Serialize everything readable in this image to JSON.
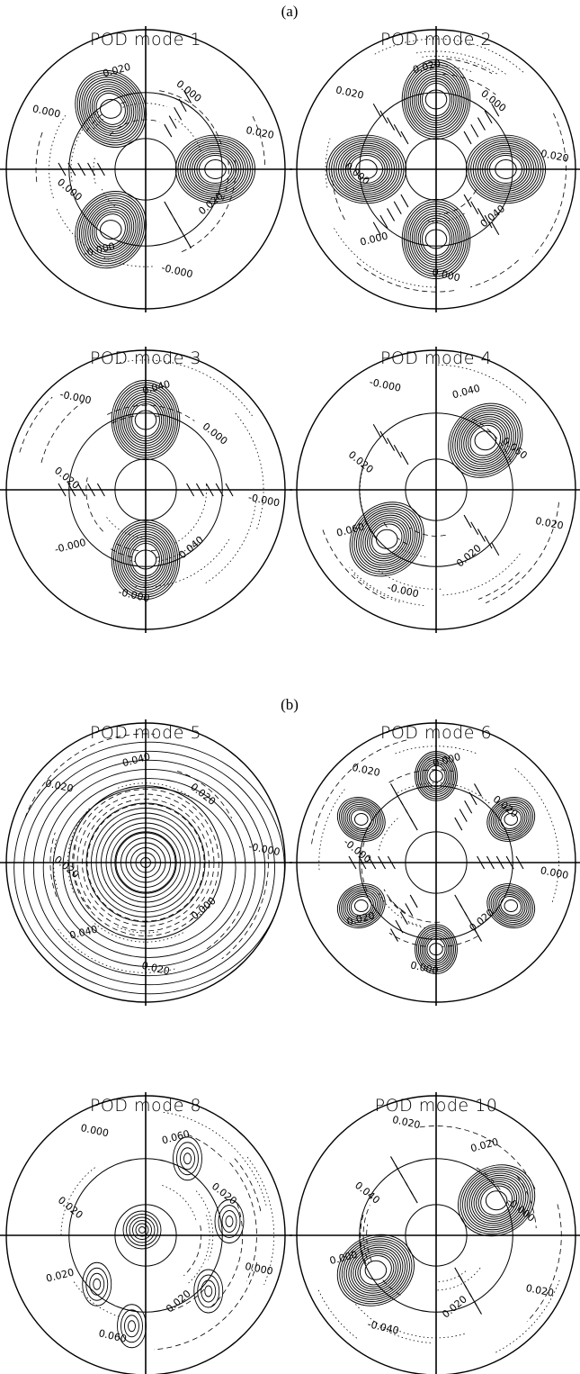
{
  "sections": [
    {
      "label": "(a)",
      "panels": [
        {
          "title": "POD mode  1",
          "pattern": {
            "m": 3,
            "phase": 90,
            "type": "lobes"
          },
          "labels": [
            "0.020",
            "-0.000",
            "-0.000",
            "0.000",
            "0.000",
            "0.020",
            "0.000",
            "0.020"
          ]
        },
        {
          "title": "POD mode  2",
          "pattern": {
            "m": 4,
            "phase": 0,
            "type": "lobes"
          },
          "labels": [
            "0.040",
            "0.000",
            "0.000",
            "0.000",
            "0.020",
            "0.020",
            "0.000",
            "0.020"
          ]
        },
        {
          "title": "POD mode  3",
          "pattern": {
            "m": 2,
            "phase": 0,
            "type": "lobes"
          },
          "labels": [
            "0.040",
            "-0.000",
            "-0.000",
            "0.020",
            "-0.000",
            "0.040",
            "0.000",
            "-0.000"
          ]
        },
        {
          "title": "POD mode  4",
          "pattern": {
            "m": 2,
            "phase": 45,
            "type": "lobes"
          },
          "labels": [
            "0.020",
            "-0.000",
            "0.060",
            "0.020",
            "-0.000",
            "0.040",
            "0.060",
            "0.020"
          ]
        }
      ]
    },
    {
      "label": "(b)",
      "panels": [
        {
          "title": "POD mode  5",
          "pattern": {
            "m": 0,
            "phase": 0,
            "type": "axisym"
          },
          "labels": [
            "-0.000",
            "0.020",
            "0.040",
            "0.020",
            "0.020",
            "0.040",
            "0.020",
            "-0.000"
          ]
        },
        {
          "title": "POD mode  6",
          "pattern": {
            "m": 6,
            "phase": 0,
            "type": "lobes"
          },
          "labels": [
            "0.020",
            "0.000",
            "0.020",
            "-0.000",
            "0.020",
            "0.000",
            "0.020",
            "0.000"
          ]
        },
        {
          "title": "POD mode  8",
          "pattern": {
            "m": 1,
            "phase": 0,
            "type": "center"
          },
          "labels": [
            "0.020",
            "0.060",
            "0.020",
            "0.020",
            "0.000",
            "0.060",
            "0.020",
            "0.000"
          ]
        },
        {
          "title": "POD mode  10",
          "pattern": {
            "m": 2,
            "phase": 60,
            "type": "lobes"
          },
          "labels": [
            "0.020",
            "-0.040",
            "0.000",
            "0.040",
            "0.020",
            "0.020",
            "-0.000",
            "0.020"
          ]
        }
      ]
    }
  ],
  "colors": {
    "ink": "#000000",
    "background": "#ffffff"
  }
}
